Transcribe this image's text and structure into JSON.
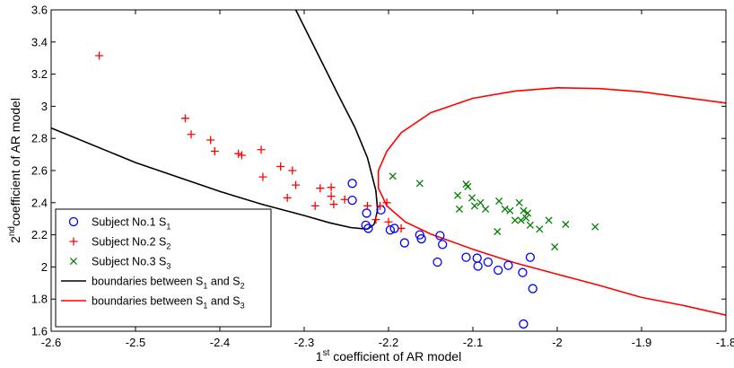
{
  "chart_data": {
    "type": "scatter",
    "title": "",
    "xlabel": {
      "base": "1",
      "sup": "st",
      "rest": " coefficient of AR model"
    },
    "ylabel": {
      "base": "2",
      "sup": "nd",
      "rest": "coefficient of AR model"
    },
    "xlim": [
      -2.6,
      -1.8
    ],
    "ylim": [
      1.6,
      3.6
    ],
    "xticks": [
      -2.6,
      -2.5,
      -2.4,
      -2.3,
      -2.2,
      -2.1,
      -2.0,
      -1.9,
      -1.8
    ],
    "xtick_labels": [
      "-2.6",
      "-2.5",
      "-2.4",
      "-2.3",
      "-2.2",
      "-2.1",
      "-2",
      "-1.9",
      "-1.8"
    ],
    "yticks": [
      1.6,
      1.8,
      2.0,
      2.2,
      2.4,
      2.6,
      2.8,
      3.0,
      3.2,
      3.4,
      3.6
    ],
    "ytick_labels": [
      "1.6",
      "1.8",
      "2",
      "2.2",
      "2.4",
      "2.6",
      "2.8",
      "3",
      "3.2",
      "3.4",
      "3.6"
    ],
    "grid": false,
    "legend_position": "bottom-left",
    "series": [
      {
        "name": "Subject No.1 S",
        "name_sub": "1",
        "marker": "circle",
        "color": "#0000ff",
        "points": [
          [
            -2.243,
            2.52
          ],
          [
            -2.243,
            2.415
          ],
          [
            -2.226,
            2.335
          ],
          [
            -2.227,
            2.26
          ],
          [
            -2.224,
            2.24
          ],
          [
            -2.209,
            2.355
          ],
          [
            -2.198,
            2.23
          ],
          [
            -2.193,
            2.24
          ],
          [
            -2.181,
            2.15
          ],
          [
            -2.163,
            2.2
          ],
          [
            -2.161,
            2.175
          ],
          [
            -2.142,
            2.03
          ],
          [
            -2.139,
            2.195
          ],
          [
            -2.136,
            2.14
          ],
          [
            -2.108,
            2.06
          ],
          [
            -2.095,
            2.055
          ],
          [
            -2.094,
            2.005
          ],
          [
            -2.082,
            2.03
          ],
          [
            -2.07,
            1.98
          ],
          [
            -2.058,
            2.01
          ],
          [
            -2.041,
            1.965
          ],
          [
            -2.032,
            2.06
          ],
          [
            -2.029,
            1.865
          ],
          [
            -2.04,
            1.645
          ]
        ]
      },
      {
        "name": "Subject No.2 S",
        "name_sub": "2",
        "marker": "plus",
        "color": "#ff0000",
        "points": [
          [
            -2.543,
            3.315
          ],
          [
            -2.441,
            2.925
          ],
          [
            -2.434,
            2.825
          ],
          [
            -2.411,
            2.79
          ],
          [
            -2.406,
            2.72
          ],
          [
            -2.378,
            2.705
          ],
          [
            -2.374,
            2.695
          ],
          [
            -2.351,
            2.73
          ],
          [
            -2.349,
            2.56
          ],
          [
            -2.328,
            2.625
          ],
          [
            -2.314,
            2.6
          ],
          [
            -2.32,
            2.43
          ],
          [
            -2.31,
            2.51
          ],
          [
            -2.287,
            2.38
          ],
          [
            -2.281,
            2.49
          ],
          [
            -2.268,
            2.495
          ],
          [
            -2.268,
            2.44
          ],
          [
            -2.265,
            2.39
          ],
          [
            -2.252,
            2.42
          ],
          [
            -2.225,
            2.38
          ],
          [
            -2.21,
            2.38
          ],
          [
            -2.202,
            2.4
          ],
          [
            -2.2,
            2.28
          ],
          [
            -2.185,
            2.24
          ],
          [
            -2.215,
            2.295
          ]
        ]
      },
      {
        "name": "Subject No.3 S",
        "name_sub": "3",
        "marker": "x",
        "color": "#008000",
        "points": [
          [
            -2.195,
            2.565
          ],
          [
            -2.163,
            2.52
          ],
          [
            -2.118,
            2.445
          ],
          [
            -2.116,
            2.36
          ],
          [
            -2.108,
            2.515
          ],
          [
            -2.106,
            2.5
          ],
          [
            -2.101,
            2.43
          ],
          [
            -2.098,
            2.38
          ],
          [
            -2.091,
            2.4
          ],
          [
            -2.071,
            2.22
          ],
          [
            -2.069,
            2.41
          ],
          [
            -2.062,
            2.36
          ],
          [
            -2.056,
            2.35
          ],
          [
            -2.05,
            2.29
          ],
          [
            -2.045,
            2.4
          ],
          [
            -2.043,
            2.29
          ],
          [
            -2.037,
            2.305
          ],
          [
            -2.032,
            2.26
          ],
          [
            -2.021,
            2.235
          ],
          [
            -2.01,
            2.29
          ],
          [
            -2.003,
            2.125
          ],
          [
            -1.99,
            2.265
          ],
          [
            -1.955,
            2.25
          ],
          [
            -2.035,
            2.335
          ],
          [
            -2.04,
            2.35
          ],
          [
            -2.085,
            2.36
          ]
        ]
      }
    ],
    "boundaries": [
      {
        "name": "boundaries between S",
        "name_sub1": "1",
        "name_mid": " and S",
        "name_sub2": "2",
        "color": "#000000",
        "lines": [
          [
            [
              -2.6,
              2.865
            ],
            [
              -2.5,
              2.65
            ],
            [
              -2.4,
              2.47
            ],
            [
              -2.35,
              2.39
            ],
            [
              -2.3,
              2.32
            ],
            [
              -2.27,
              2.275
            ],
            [
              -2.245,
              2.245
            ],
            [
              -2.225,
              2.235
            ],
            [
              -2.217,
              2.265
            ]
          ],
          [
            [
              -2.31,
              3.6
            ],
            [
              -2.28,
              3.285
            ],
            [
              -2.26,
              3.075
            ],
            [
              -2.24,
              2.87
            ],
            [
              -2.225,
              2.68
            ],
            [
              -2.215,
              2.475
            ],
            [
              -2.213,
              2.355
            ],
            [
              -2.217,
              2.265
            ]
          ]
        ]
      },
      {
        "name": "boundaries between S",
        "name_sub1": "1",
        "name_mid": " and S",
        "name_sub2": "3",
        "color": "#ff0000",
        "lines": [
          [
            [
              -1.8,
              1.7
            ],
            [
              -1.85,
              1.76
            ],
            [
              -1.9,
              1.81
            ],
            [
              -1.95,
              1.885
            ],
            [
              -2.0,
              1.955
            ],
            [
              -2.05,
              2.025
            ],
            [
              -2.1,
              2.11
            ],
            [
              -2.15,
              2.205
            ],
            [
              -2.18,
              2.28
            ],
            [
              -2.202,
              2.38
            ],
            [
              -2.212,
              2.49
            ],
            [
              -2.212,
              2.6
            ],
            [
              -2.202,
              2.72
            ],
            [
              -2.185,
              2.835
            ],
            [
              -2.15,
              2.96
            ],
            [
              -2.1,
              3.05
            ],
            [
              -2.05,
              3.095
            ],
            [
              -2.0,
              3.115
            ],
            [
              -1.95,
              3.11
            ],
            [
              -1.9,
              3.09
            ],
            [
              -1.85,
              3.055
            ],
            [
              -1.8,
              3.02
            ]
          ]
        ]
      }
    ]
  }
}
